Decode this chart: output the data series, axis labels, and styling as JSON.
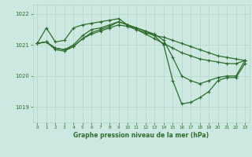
{
  "bg_color": "#cce8e0",
  "plot_bg_color": "#cce8e0",
  "line_color": "#2d6e2d",
  "grid_color": "#b0d4c8",
  "title": "Graphe pression niveau de la mer (hPa)",
  "title_color": "#2d6e2d",
  "xlim": [
    -0.5,
    23.5
  ],
  "ylim": [
    1018.5,
    1022.3
  ],
  "yticks": [
    1019,
    1020,
    1021,
    1022
  ],
  "xticks": [
    0,
    1,
    2,
    3,
    4,
    5,
    6,
    7,
    8,
    9,
    10,
    11,
    12,
    13,
    14,
    15,
    16,
    17,
    18,
    19,
    20,
    21,
    22,
    23
  ],
  "series": [
    [
      1021.05,
      1021.55,
      1021.1,
      1021.15,
      1021.55,
      1021.65,
      1021.7,
      1021.75,
      1021.8,
      1021.85,
      1021.65,
      1021.55,
      1021.45,
      1021.3,
      1021.25,
      1021.15,
      1021.05,
      1020.95,
      1020.85,
      1020.75,
      1020.65,
      1020.6,
      1020.55,
      1020.5
    ],
    [
      1021.05,
      1021.1,
      1020.9,
      1020.85,
      1021.0,
      1021.3,
      1021.5,
      1021.55,
      1021.65,
      1021.75,
      1021.65,
      1021.5,
      1021.35,
      1021.2,
      1021.05,
      1020.9,
      1020.75,
      1020.65,
      1020.55,
      1020.5,
      1020.45,
      1020.4,
      1020.4,
      1020.5
    ],
    [
      1021.05,
      1021.1,
      1020.85,
      1020.8,
      1020.95,
      1021.2,
      1021.4,
      1021.5,
      1021.6,
      1021.75,
      1021.65,
      1021.55,
      1021.45,
      1021.35,
      1021.15,
      1020.6,
      1020.0,
      1019.85,
      1019.75,
      1019.85,
      1019.95,
      1020.0,
      1020.0,
      1020.5
    ],
    [
      1021.05,
      1021.1,
      1020.9,
      1020.85,
      1020.95,
      1021.2,
      1021.35,
      1021.45,
      1021.55,
      1021.65,
      1021.6,
      1021.5,
      1021.4,
      1021.3,
      1021.0,
      1019.85,
      1019.1,
      1019.15,
      1019.3,
      1019.5,
      1019.85,
      1019.95,
      1019.95,
      1020.4
    ]
  ],
  "marker": "+",
  "markersize": 3,
  "linewidth": 0.9
}
